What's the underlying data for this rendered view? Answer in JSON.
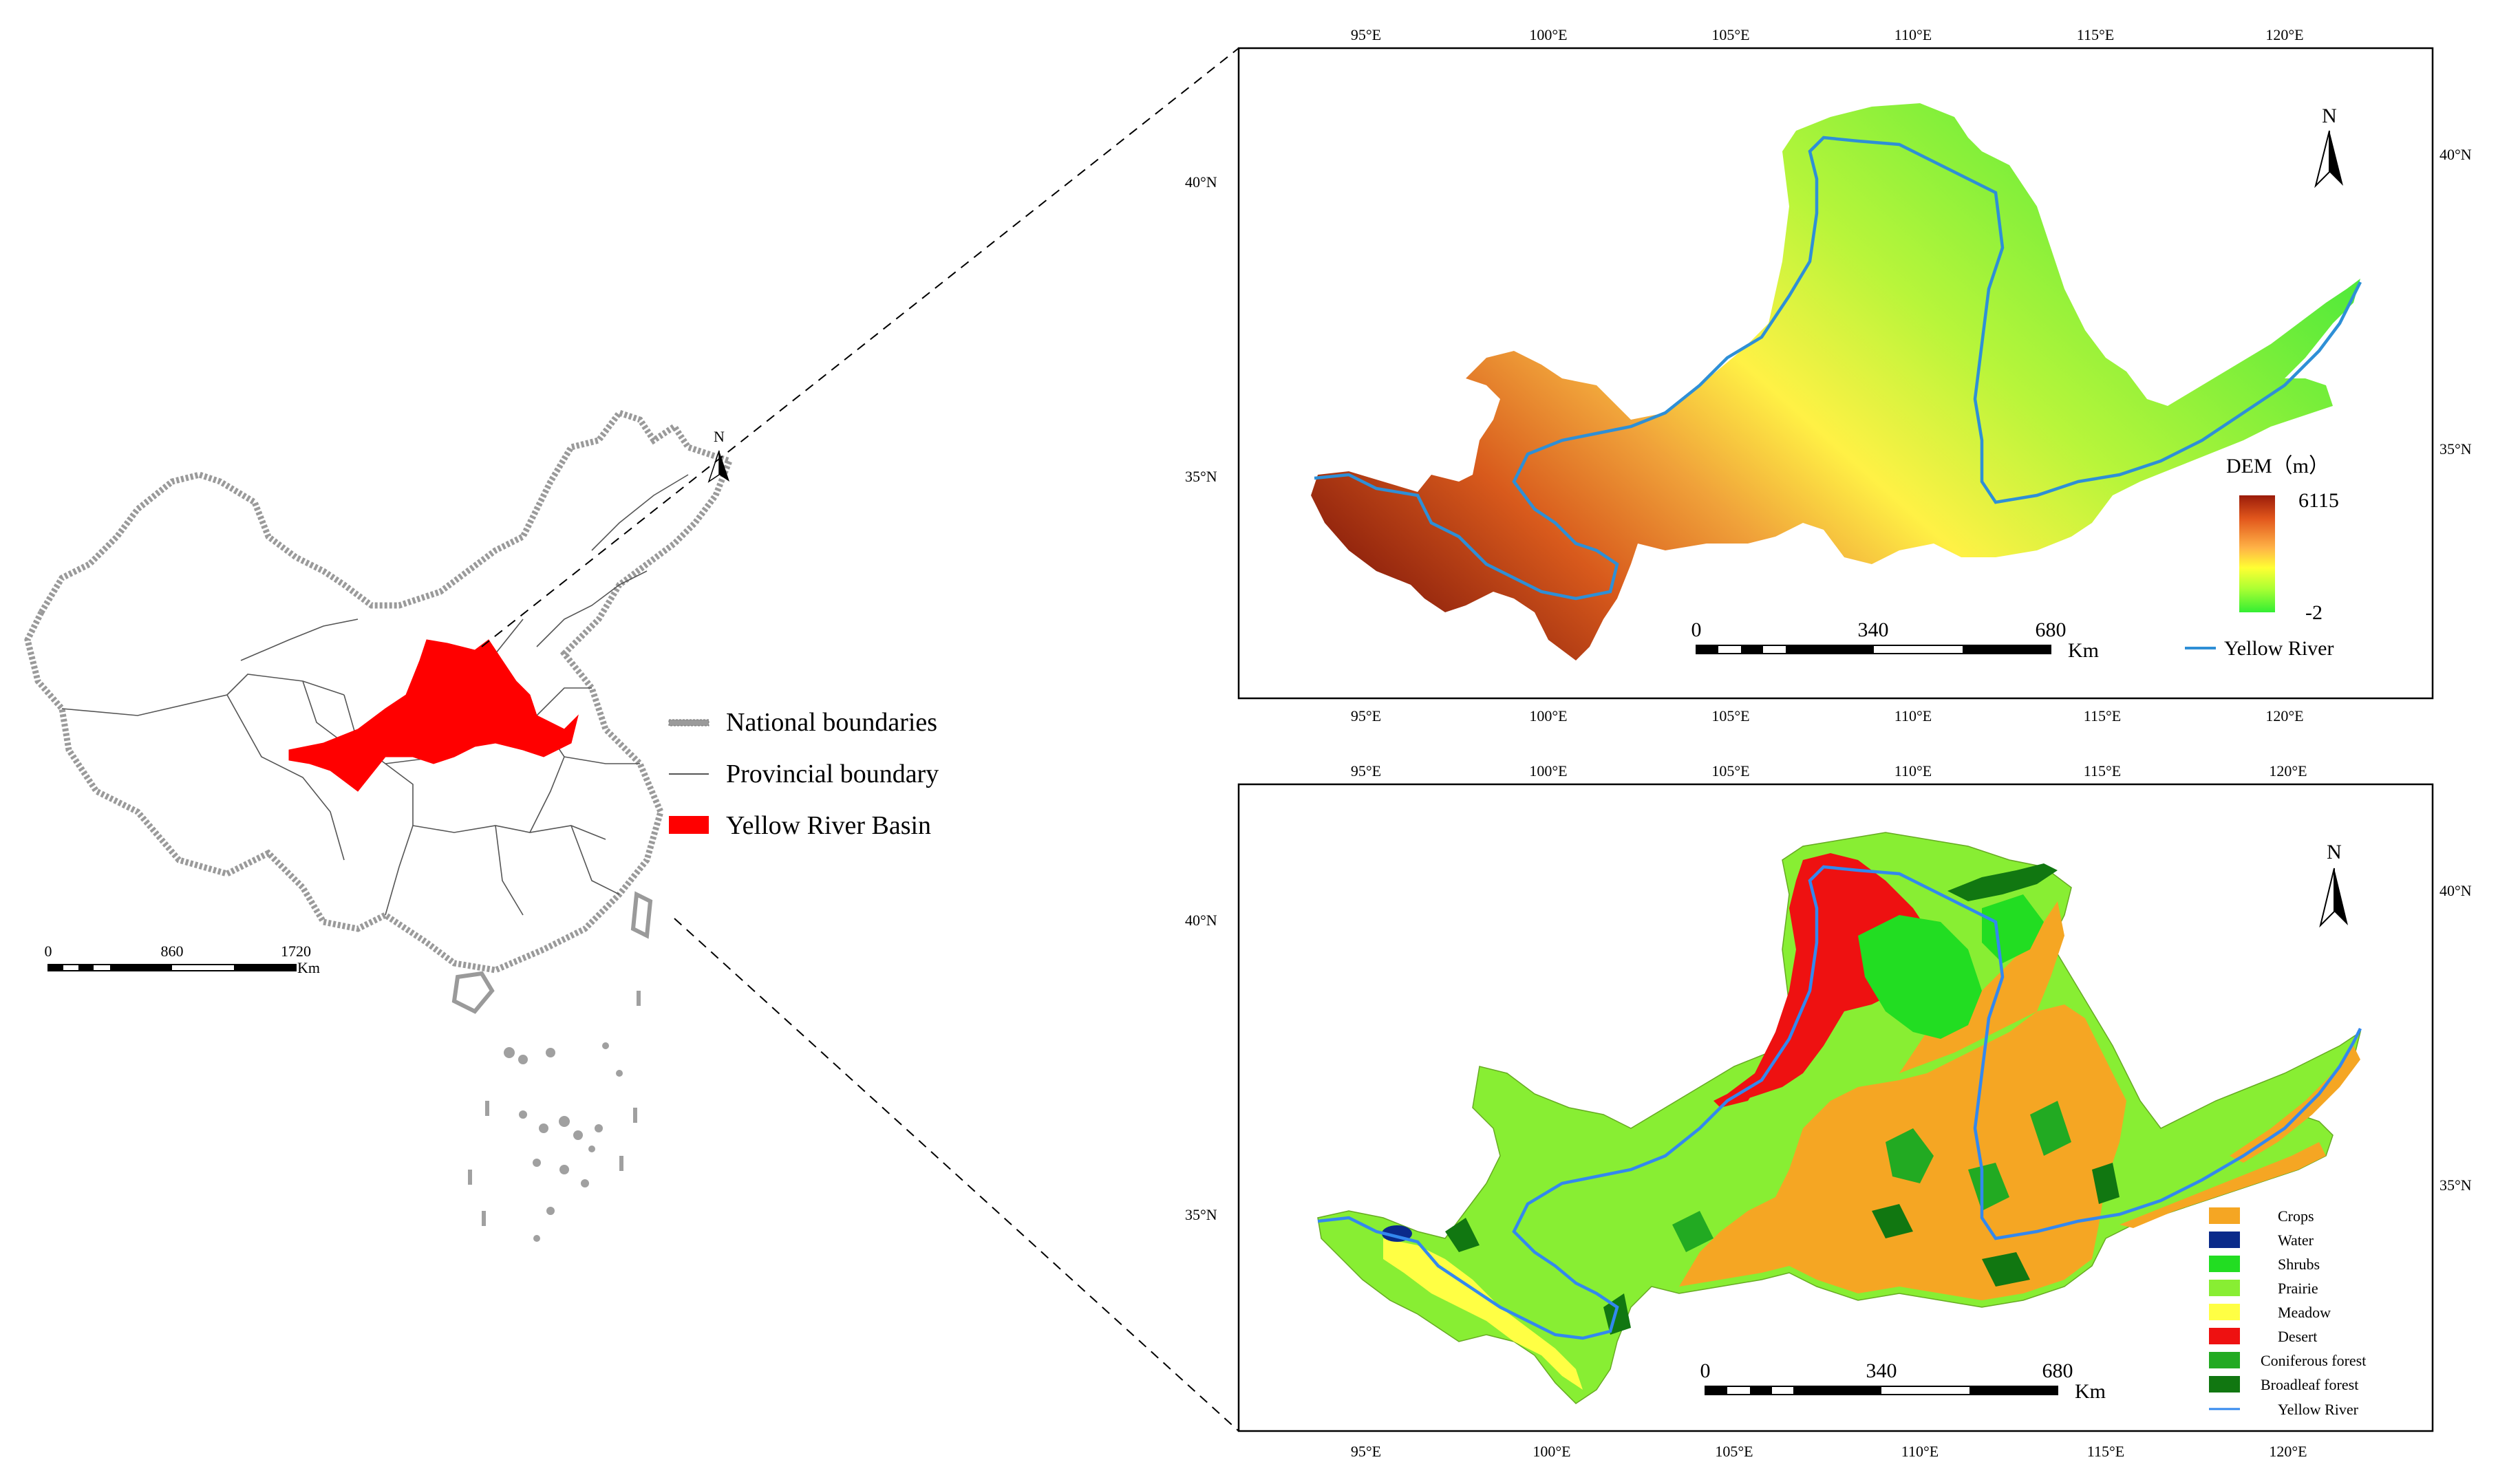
{
  "overview": {
    "north": "N",
    "scale": {
      "labels": [
        "0",
        "860",
        "1720"
      ],
      "unit": "Km"
    },
    "legend": [
      {
        "label": "National boundaries",
        "symbol": "national",
        "color": "#9a9a9a"
      },
      {
        "label": "Provincial boundary",
        "symbol": "provincial",
        "color": "#555555"
      },
      {
        "label": "Yellow River Basin",
        "symbol": "basin",
        "color": "#ff0000"
      }
    ]
  },
  "dem_map": {
    "lon_ticks": [
      "95°E",
      "100°E",
      "105°E",
      "110°E",
      "115°E",
      "120°E"
    ],
    "lat_ticks": [
      "40°N",
      "35°N"
    ],
    "north": "N",
    "legend_title": "DEM（m）",
    "max_value": "6115",
    "min_value": "-2",
    "ramp": [
      "#9b1c0a",
      "#e2571c",
      "#ffb347",
      "#ffff33",
      "#aaff33",
      "#33ee33"
    ],
    "scale": {
      "labels": [
        "0",
        "340",
        "680"
      ],
      "unit": "Km"
    },
    "river_label": "Yellow River",
    "river_color": "#2e8fd6"
  },
  "landuse_map": {
    "lon_ticks": [
      "95°E",
      "100°E",
      "105°E",
      "110°E",
      "115°E",
      "120°E"
    ],
    "lat_ticks": [
      "40°N",
      "35°N"
    ],
    "north": "N",
    "scale": {
      "labels": [
        "0",
        "340",
        "680"
      ],
      "unit": "Km"
    },
    "legend": [
      {
        "label": "Crops",
        "color": "#f5a623"
      },
      {
        "label": "Water",
        "color": "#0a2a8a"
      },
      {
        "label": "Shrubs",
        "color": "#22dd22"
      },
      {
        "label": "Prairie",
        "color": "#88ee33"
      },
      {
        "label": "Meadow",
        "color": "#ffff44"
      },
      {
        "label": "Desert",
        "color": "#ee1111"
      },
      {
        "label": "Coniferous forest",
        "color": "#22aa22"
      },
      {
        "label": "Broadleaf forest",
        "color": "#117711"
      },
      {
        "label": "Yellow River",
        "color": "#3388ee"
      }
    ]
  }
}
